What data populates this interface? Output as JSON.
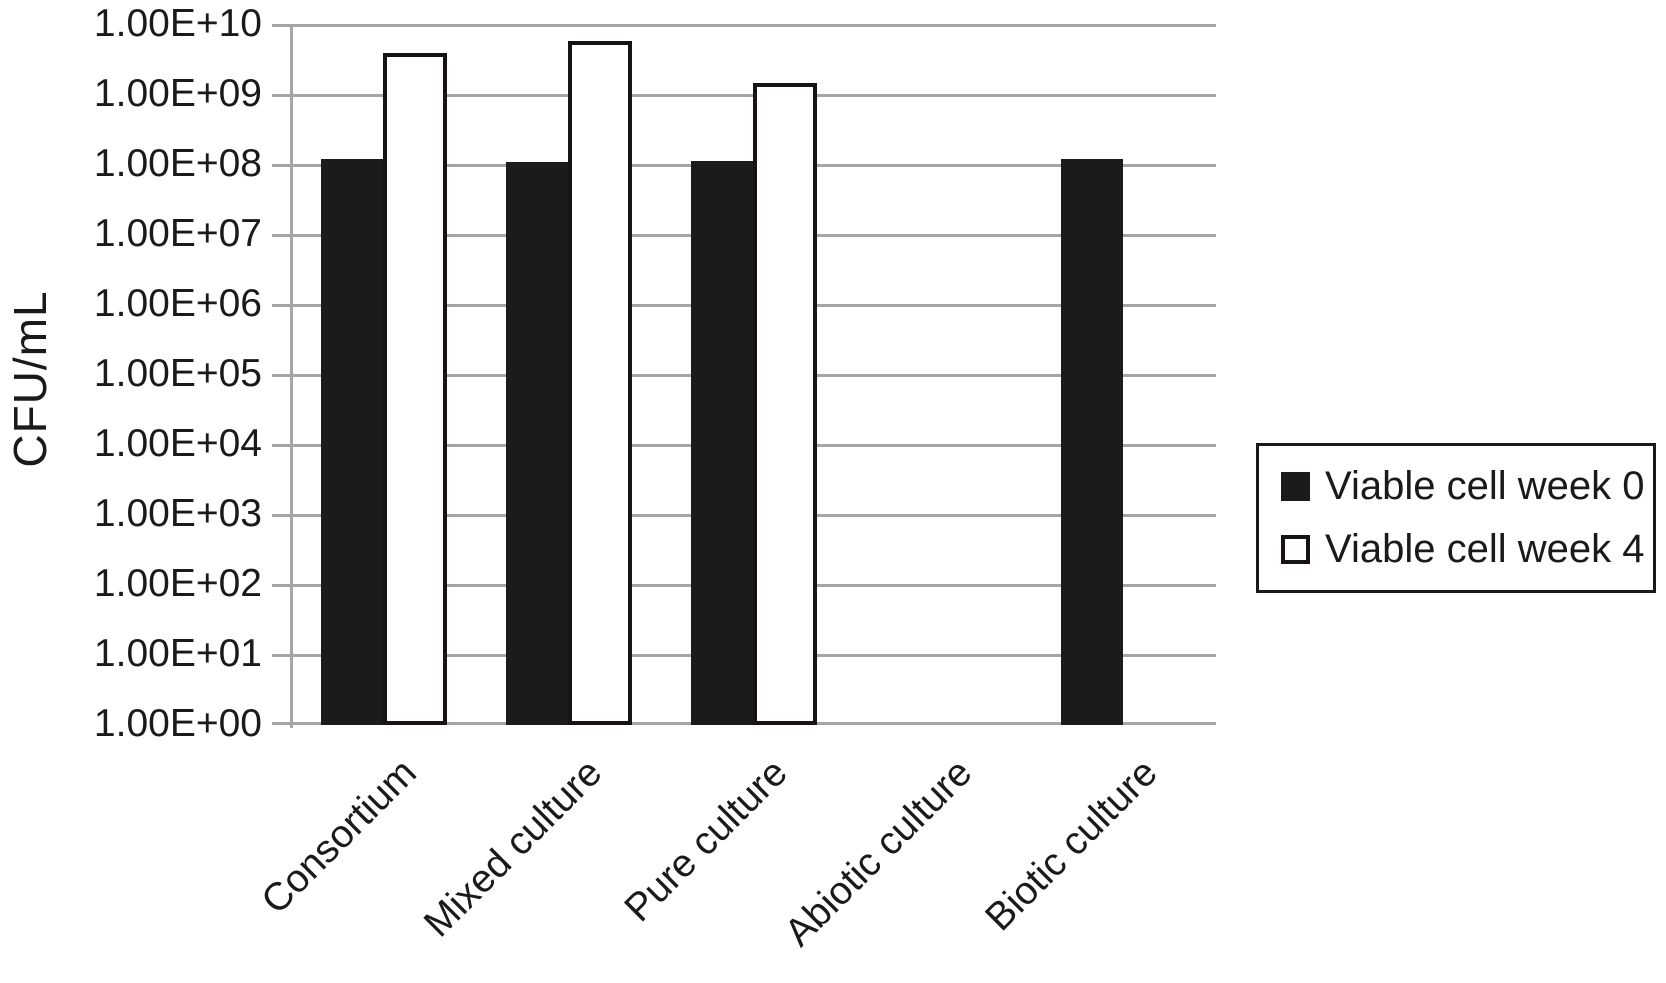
{
  "chart_data": {
    "type": "bar",
    "title": "",
    "xlabel": "",
    "ylabel": "CFU/mL",
    "yscale": "log",
    "ylim": [
      1,
      10000000000
    ],
    "grid": "horizontal",
    "legend_position": "right",
    "yticks": [
      {
        "exp": 0,
        "label": "1.00E+00"
      },
      {
        "exp": 1,
        "label": "1.00E+01"
      },
      {
        "exp": 2,
        "label": "1.00E+02"
      },
      {
        "exp": 3,
        "label": "1.00E+03"
      },
      {
        "exp": 4,
        "label": "1.00E+04"
      },
      {
        "exp": 5,
        "label": "1.00E+05"
      },
      {
        "exp": 6,
        "label": "1.00E+06"
      },
      {
        "exp": 7,
        "label": "1.00E+07"
      },
      {
        "exp": 8,
        "label": "1.00E+08"
      },
      {
        "exp": 9,
        "label": "1.00E+09"
      },
      {
        "exp": 10,
        "label": "1.00E+10"
      }
    ],
    "categories": [
      "Consortium",
      "Mixed culture",
      "Pure culture",
      "Abiotic culture",
      "Biotic culture"
    ],
    "series": [
      {
        "name": "Viable cell week 0",
        "style": "filled",
        "values": [
          120000000.0,
          110000000.0,
          115000000.0,
          null,
          120000000.0
        ]
      },
      {
        "name": "Viable cell week 4",
        "style": "open",
        "values": [
          4000000000.0,
          6000000000.0,
          1500000000.0,
          null,
          null
        ]
      }
    ]
  },
  "colors": {
    "bar_fill": "#1d1a1b",
    "bar_outline": "#171314",
    "open_bar_fill": "#ffffff",
    "gridline": "#a5a5a5",
    "text": "#1a1a1a",
    "background": "#ffffff"
  }
}
